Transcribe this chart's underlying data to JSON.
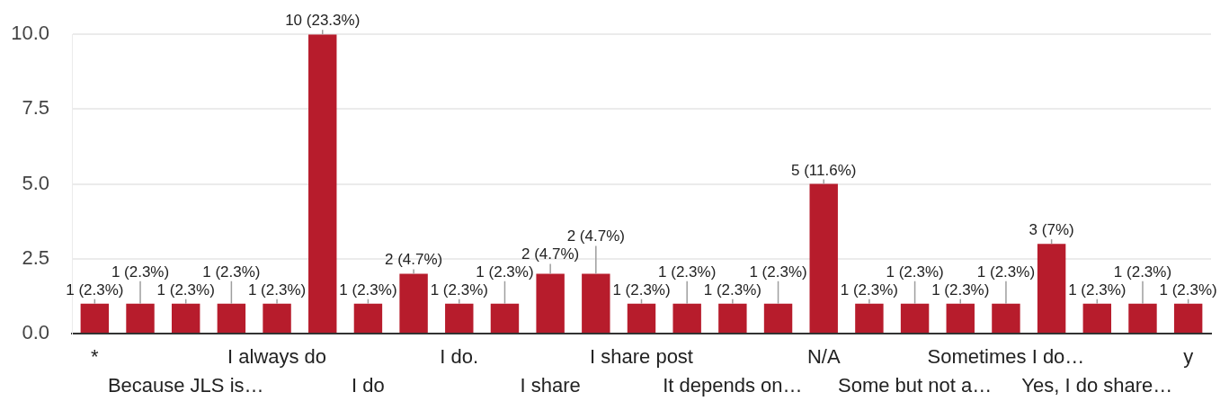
{
  "chart_data": {
    "type": "bar",
    "categories": [
      "*",
      null,
      "Because JLS is…",
      null,
      "I always do",
      null,
      "I do",
      null,
      "I do.",
      null,
      "I share",
      null,
      "I share post",
      null,
      "It depends on…",
      null,
      "N/A",
      null,
      "Some but not a…",
      null,
      "Sometimes I do…",
      null,
      "Yes, I do share…",
      null,
      "y"
    ],
    "values": [
      1,
      1,
      1,
      1,
      1,
      10,
      1,
      2,
      1,
      1,
      2,
      2,
      1,
      1,
      1,
      1,
      5,
      1,
      1,
      1,
      1,
      3,
      1,
      1,
      1
    ],
    "value_labels": [
      "1 (2.3%)",
      "1 (2.3%)",
      "1 (2.3%)",
      "1 (2.3%)",
      "1 (2.3%)",
      "10 (23.3%)",
      "1 (2.3%)",
      "2 (4.7%)",
      "1 (2.3%)",
      "1 (2.3%)",
      "2 (4.7%)",
      "2 (4.7%)",
      "1 (2.3%)",
      "1 (2.3%)",
      "1 (2.3%)",
      "1 (2.3%)",
      "5 (11.6%)",
      "1 (2.3%)",
      "1 (2.3%)",
      "1 (2.3%)",
      "1 (2.3%)",
      "3 (7%)",
      "1 (2.3%)",
      "1 (2.3%)",
      "1 (2.3%)"
    ],
    "color": "#b71c2c",
    "ylim": [
      0,
      10
    ],
    "yticks": [
      {
        "value": 0,
        "label": "0.0"
      },
      2.5,
      {
        "value": 5,
        "label": "5.0"
      },
      7.5,
      {
        "value": 10,
        "label": "10.0"
      }
    ],
    "grid": "y"
  }
}
